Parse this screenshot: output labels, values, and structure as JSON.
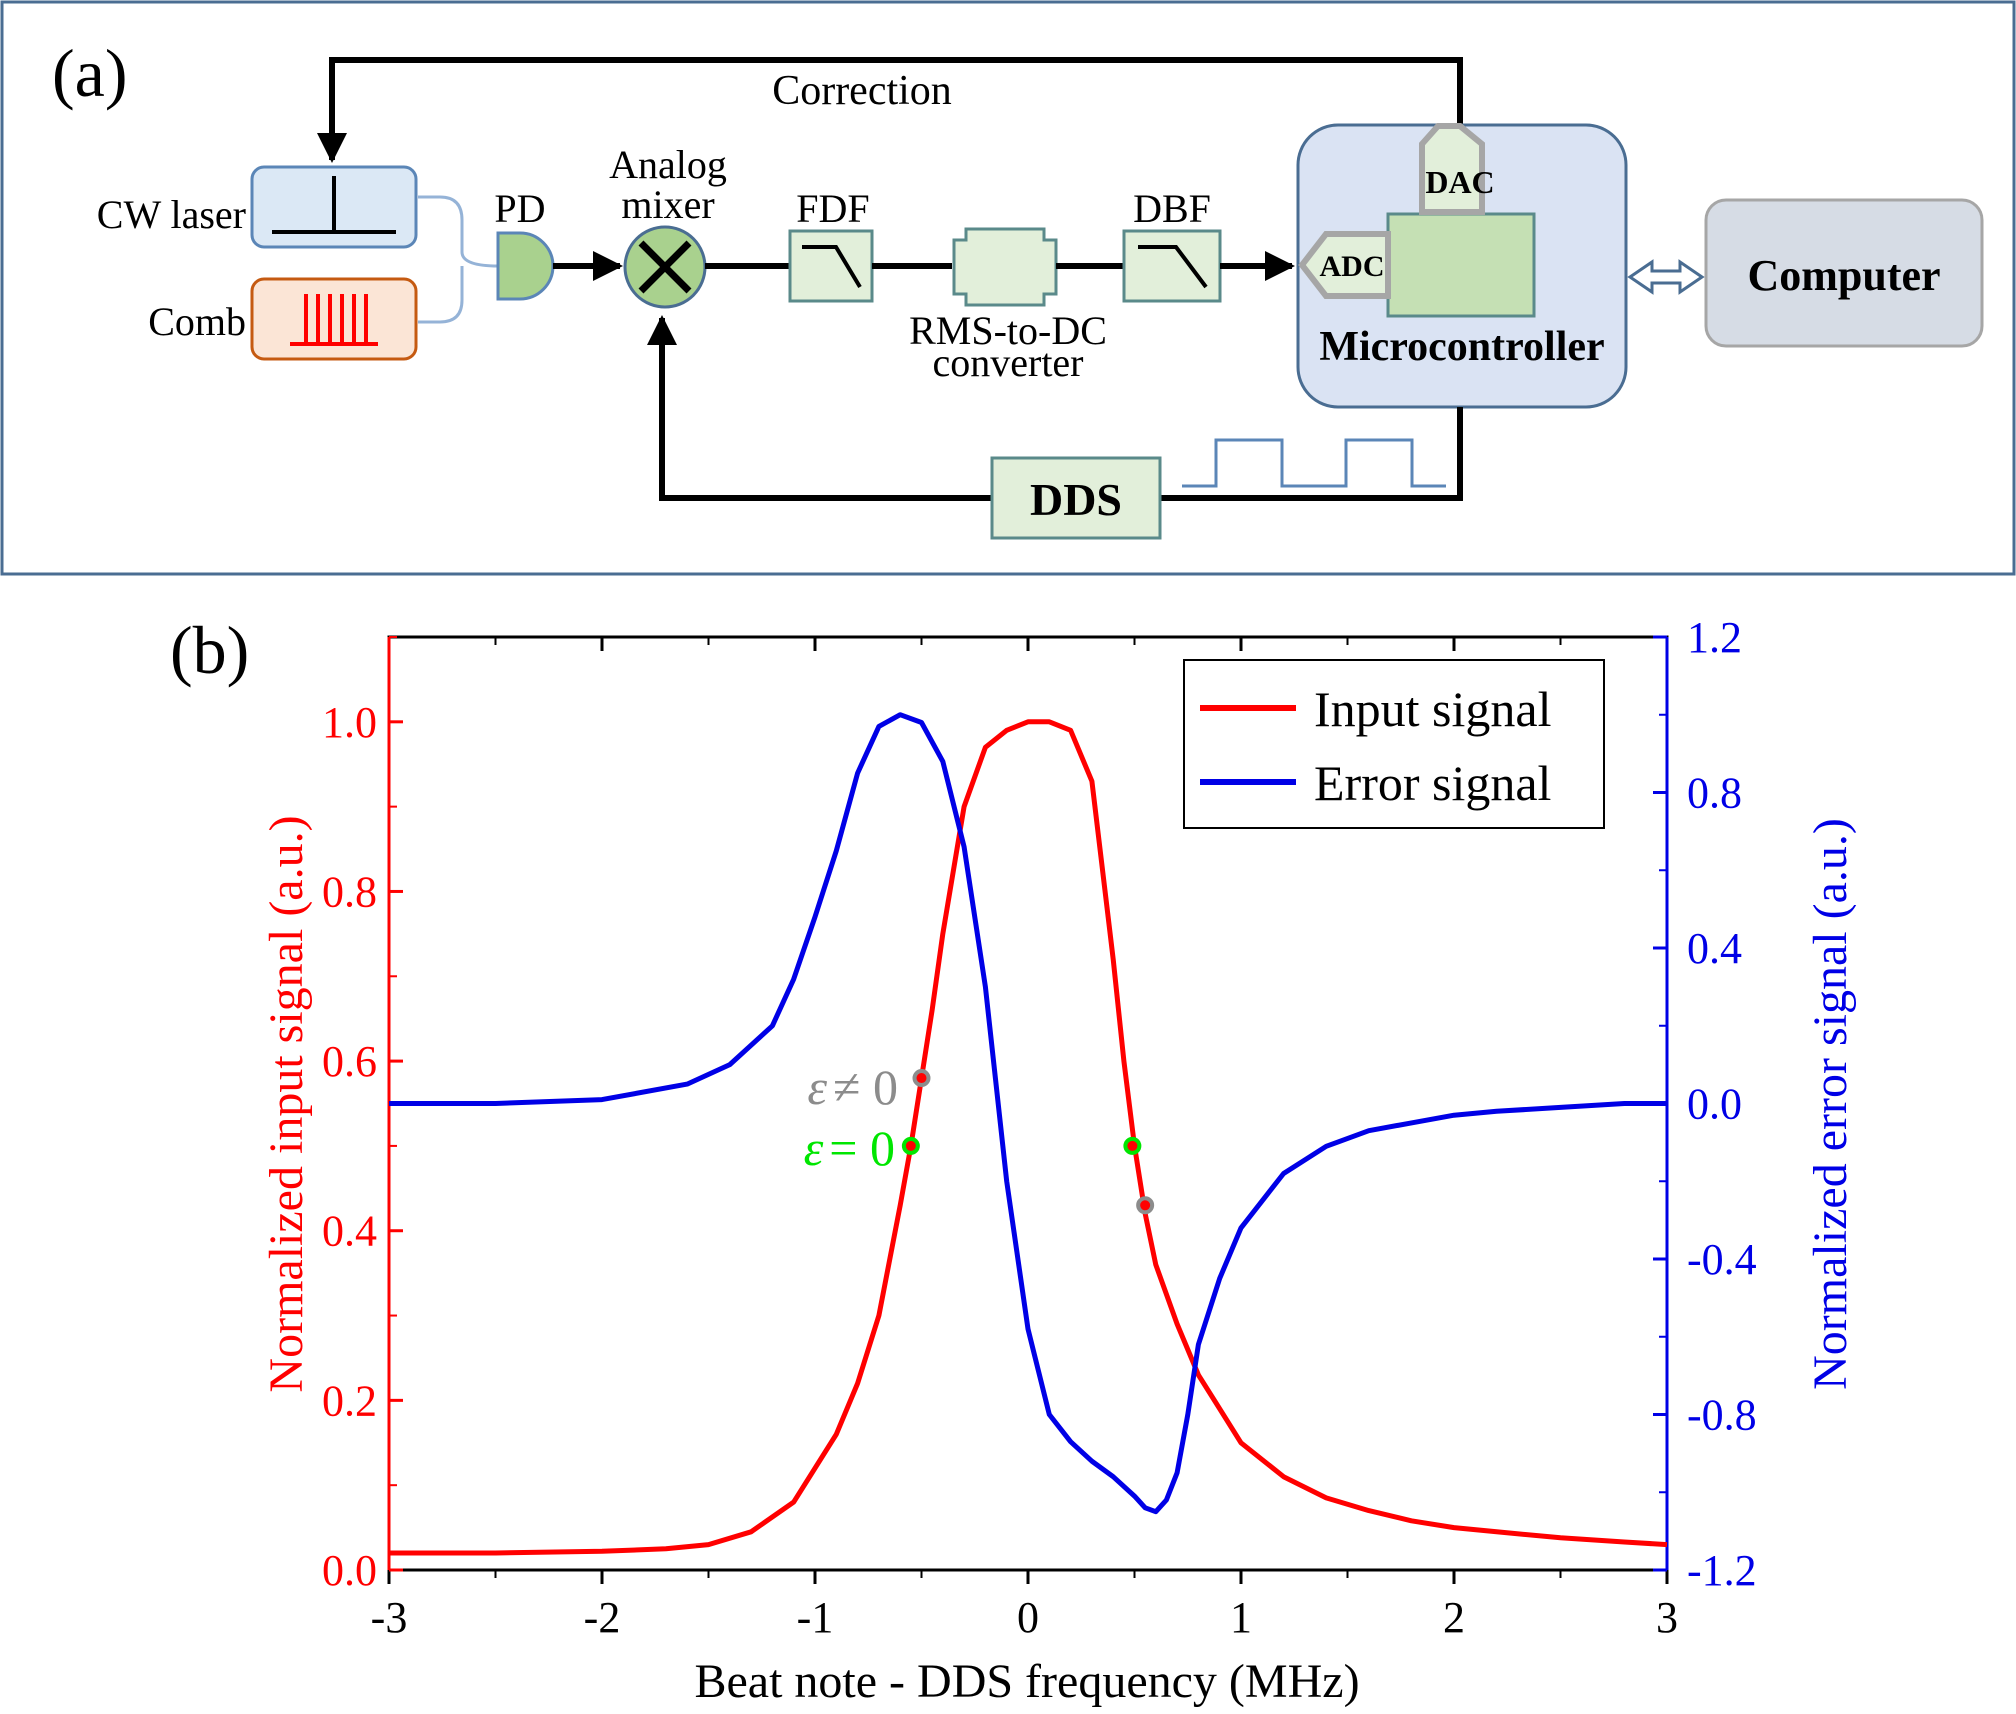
{
  "panel_a": {
    "label": "(a)",
    "correction": "Correction",
    "cw_laser": "CW laser",
    "comb": "Comb",
    "pd": "PD",
    "mixer_line1": "Analog",
    "mixer_line2": "mixer",
    "fdf": "FDF",
    "rms_line1": "RMS-to-DC",
    "rms_line2": "converter",
    "dbf": "DBF",
    "dac": "DAC",
    "adc": "ADC",
    "microcontroller": "Microcontroller",
    "computer": "Computer",
    "dds": "DDS",
    "colors": {
      "laser_fill": "#dbe8f5",
      "laser_stroke": "#5b86b7",
      "comb_fill": "#fbe5d6",
      "comb_stroke": "#c55a11",
      "comb_lines": "#ff0000",
      "block_fill": "#e2efda",
      "block_stroke": "#5a8a8a",
      "mixer_fill": "#a9d18e",
      "micro_fill": "#dae3f3",
      "computer_fill": "#d6dce5"
    }
  },
  "panel_b": {
    "label": "(b)",
    "legend_input": "Input signal",
    "legend_error": "Error signal",
    "marker_ne_eps": "ε",
    "marker_ne_rest": "≠ 0",
    "marker_eq_eps": "ε",
    "marker_eq_rest": "= 0",
    "colors": {
      "input": "#ff0000",
      "error": "#0000e6",
      "marker_ne": "#8c8c8c",
      "marker_eq": "#00e600"
    }
  },
  "chart_data": {
    "type": "line",
    "xlabel": "Beat note - DDS frequency (MHz)",
    "ylabel_left": "Normalized input signal (a.u.)",
    "ylabel_right": "Normalized error signal (a.u.)",
    "xlim": [
      -3,
      3
    ],
    "ylim_left": [
      0,
      1.1
    ],
    "ylim_right": [
      -1.2,
      1.2
    ],
    "xticks": [
      "-3",
      "-2",
      "-1",
      "0",
      "1",
      "2",
      "3"
    ],
    "yticks_left": [
      "0.0",
      "0.2",
      "0.4",
      "0.6",
      "0.8",
      "1.0"
    ],
    "yticks_right": [
      "-1.2",
      "-0.8",
      "-0.4",
      "0.0",
      "0.4",
      "0.8",
      "1.2"
    ],
    "legend": "top-right",
    "series": [
      {
        "name": "Input signal",
        "axis": "left",
        "color": "#ff0000",
        "x": [
          -3.0,
          -2.5,
          -2.0,
          -1.7,
          -1.5,
          -1.3,
          -1.1,
          -1.0,
          -0.9,
          -0.8,
          -0.7,
          -0.6,
          -0.55,
          -0.5,
          -0.45,
          -0.4,
          -0.3,
          -0.2,
          -0.1,
          0.0,
          0.1,
          0.2,
          0.3,
          0.4,
          0.45,
          0.5,
          0.55,
          0.6,
          0.7,
          0.8,
          0.9,
          1.0,
          1.2,
          1.4,
          1.6,
          1.8,
          2.0,
          2.2,
          2.5,
          2.8,
          3.0
        ],
        "values": [
          0.02,
          0.02,
          0.022,
          0.025,
          0.03,
          0.045,
          0.08,
          0.12,
          0.16,
          0.22,
          0.3,
          0.43,
          0.5,
          0.58,
          0.66,
          0.75,
          0.9,
          0.97,
          0.99,
          1.0,
          1.0,
          0.99,
          0.93,
          0.72,
          0.6,
          0.5,
          0.42,
          0.36,
          0.29,
          0.23,
          0.19,
          0.15,
          0.11,
          0.085,
          0.07,
          0.058,
          0.05,
          0.045,
          0.038,
          0.033,
          0.03
        ]
      },
      {
        "name": "Error signal",
        "axis": "right",
        "color": "#0000e6",
        "x": [
          -3.0,
          -2.5,
          -2.0,
          -1.6,
          -1.4,
          -1.2,
          -1.1,
          -1.0,
          -0.9,
          -0.8,
          -0.7,
          -0.6,
          -0.5,
          -0.4,
          -0.3,
          -0.2,
          -0.1,
          0.0,
          0.1,
          0.2,
          0.3,
          0.4,
          0.5,
          0.55,
          0.6,
          0.65,
          0.7,
          0.75,
          0.8,
          0.9,
          1.0,
          1.2,
          1.4,
          1.6,
          1.8,
          2.0,
          2.2,
          2.5,
          2.8,
          3.0
        ],
        "values": [
          0.0,
          0.0,
          0.01,
          0.05,
          0.1,
          0.2,
          0.32,
          0.48,
          0.65,
          0.85,
          0.97,
          1.0,
          0.98,
          0.88,
          0.66,
          0.3,
          -0.2,
          -0.58,
          -0.8,
          -0.87,
          -0.92,
          -0.96,
          -1.01,
          -1.04,
          -1.05,
          -1.02,
          -0.95,
          -0.8,
          -0.62,
          -0.45,
          -0.32,
          -0.18,
          -0.11,
          -0.07,
          -0.05,
          -0.03,
          -0.02,
          -0.01,
          0.0,
          0.0
        ]
      }
    ],
    "markers": [
      {
        "x": -0.5,
        "y_left": 0.58,
        "color": "#8c8c8c"
      },
      {
        "x": -0.55,
        "y_left": 0.5,
        "color": "#00e600"
      },
      {
        "x": 0.49,
        "y_left": 0.5,
        "color": "#00e600"
      },
      {
        "x": 0.55,
        "y_left": 0.43,
        "color": "#8c8c8c"
      }
    ]
  }
}
